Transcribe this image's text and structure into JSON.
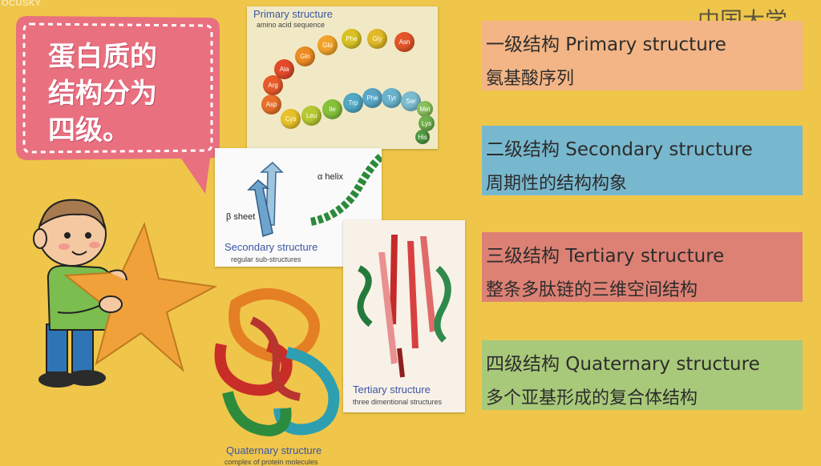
{
  "watermark": "OCUSKY",
  "logo_text": "中国大学MO",
  "bubble_text": "蛋白质的\n结构分为\n四级。",
  "figures": {
    "primary": {
      "title": "Primary structure",
      "subtitle": "amino acid sequence",
      "amino_acids": [
        "Asp",
        "Arg",
        "Ala",
        "Gln",
        "Glu",
        "Phe",
        "Gly",
        "Asn",
        "Cys",
        "Leu",
        "Ile",
        "Trp",
        "Phe",
        "Tyr",
        "Ser",
        "Met",
        "Lys",
        "His"
      ]
    },
    "secondary": {
      "title": "Secondary structure",
      "subtitle": "regular sub-structures",
      "alpha_label": "α helix",
      "beta_label": "β sheet"
    },
    "tertiary": {
      "title": "Tertiary structure",
      "subtitle": "three dimentional structures"
    },
    "quaternary": {
      "title": "Quaternary structure",
      "subtitle": "complex of protein molecules"
    }
  },
  "levels": [
    {
      "title": "一级结构 Primary structure",
      "desc": "氨基酸序列",
      "color": "#f3b585"
    },
    {
      "title": "二级结构 Secondary structure",
      "desc": "周期性的结构构象",
      "color": "#78b8cf"
    },
    {
      "title": "三级结构 Tertiary structure",
      "desc": "整条多肽链的三维空间结构",
      "color": "#dd8174"
    },
    {
      "title": "四级结构 Quaternary structure",
      "desc": "多个亚基形成的复合体结构",
      "color": "#a8c97a"
    }
  ]
}
